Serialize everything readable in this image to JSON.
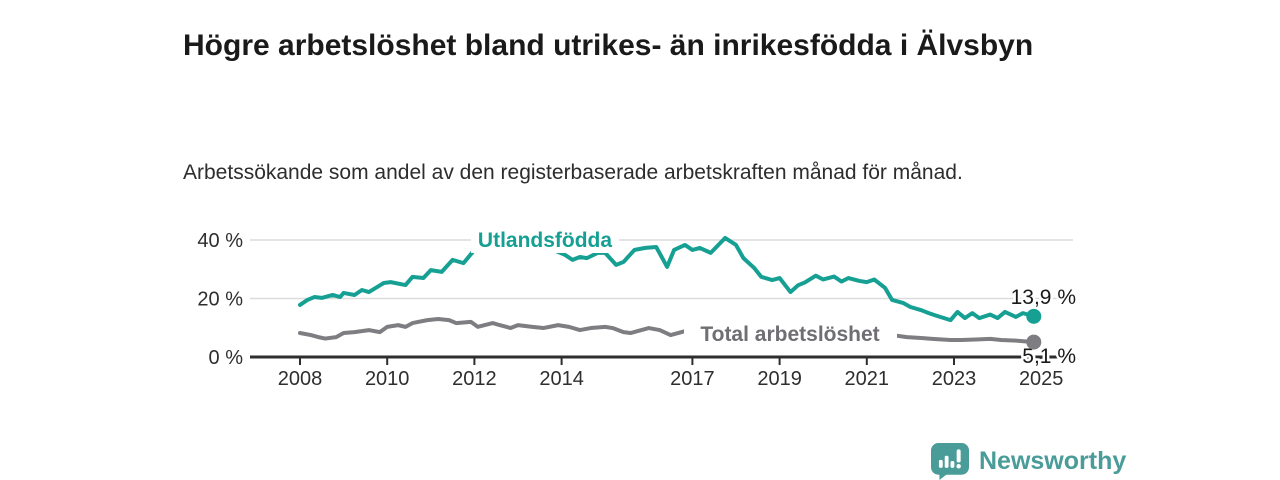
{
  "title": "Högre arbetslöshet bland utrikes- än inrikesfödda i Älvsbyn",
  "subtitle": "Arbetssökande som andel av den registerbaserade arbetskraften månad för månad.",
  "footer": {
    "brand": "Newsworthy",
    "logo_icon": "bar-chart-speech-bubble-icon"
  },
  "colors": {
    "accent_teal": "#16a093",
    "line_gray": "#7e7e82",
    "series_label_gray": "#6e6e73",
    "grid": "#dcdcdc",
    "axis": "#2e2e2e",
    "text": "#1a1a1a",
    "brand_teal": "#4a9c99"
  },
  "chart_data": {
    "type": "line",
    "title": "Högre arbetslöshet bland utrikes- än inrikesfödda i Älvsbyn",
    "subtitle": "Arbetssökande som andel av den registerbaserade arbetskraften månad för månad.",
    "unit": "%",
    "grid": true,
    "legend_position": "inline-labels",
    "xlim": [
      2006.9,
      2025.7
    ],
    "ylim": [
      0,
      44
    ],
    "x_ticks": [
      2008,
      2010,
      2012,
      2014,
      2017,
      2019,
      2021,
      2023,
      2025
    ],
    "y_ticks": [
      {
        "value": 0,
        "label": "0 %"
      },
      {
        "value": 20,
        "label": "20 %"
      },
      {
        "value": 40,
        "label": "40 %"
      }
    ],
    "series": [
      {
        "name": "Utlandsfödda",
        "color": "#16a093",
        "end_value": 13.9,
        "end_label": "13,9 %",
        "points": [
          [
            2008.0,
            17.8
          ],
          [
            2008.17,
            19.5
          ],
          [
            2008.33,
            20.5
          ],
          [
            2008.5,
            20.2
          ],
          [
            2008.75,
            21.2
          ],
          [
            2008.92,
            20.5
          ],
          [
            2009.0,
            21.9
          ],
          [
            2009.25,
            21.2
          ],
          [
            2009.42,
            22.9
          ],
          [
            2009.58,
            22.2
          ],
          [
            2009.92,
            25.3
          ],
          [
            2010.08,
            25.6
          ],
          [
            2010.42,
            24.6
          ],
          [
            2010.58,
            27.4
          ],
          [
            2010.83,
            27.0
          ],
          [
            2011.0,
            29.7
          ],
          [
            2011.25,
            29.1
          ],
          [
            2011.5,
            33.2
          ],
          [
            2011.75,
            32.1
          ],
          [
            2012.0,
            36.6
          ],
          [
            2012.17,
            38.3
          ],
          [
            2012.42,
            37.3
          ],
          [
            2012.58,
            39.0
          ],
          [
            2012.83,
            37.6
          ],
          [
            2013.08,
            38.3
          ],
          [
            2013.42,
            39.5
          ],
          [
            2013.58,
            38.0
          ],
          [
            2013.83,
            36.5
          ],
          [
            2014.08,
            34.9
          ],
          [
            2014.25,
            33.2
          ],
          [
            2014.42,
            34.2
          ],
          [
            2014.58,
            33.8
          ],
          [
            2014.83,
            35.6
          ],
          [
            2015.0,
            35.6
          ],
          [
            2015.25,
            31.5
          ],
          [
            2015.42,
            32.5
          ],
          [
            2015.67,
            36.6
          ],
          [
            2015.92,
            37.3
          ],
          [
            2016.17,
            37.6
          ],
          [
            2016.42,
            30.8
          ],
          [
            2016.58,
            36.6
          ],
          [
            2016.83,
            38.3
          ],
          [
            2017.0,
            36.6
          ],
          [
            2017.17,
            37.3
          ],
          [
            2017.42,
            35.6
          ],
          [
            2017.75,
            40.7
          ],
          [
            2018.0,
            38.3
          ],
          [
            2018.17,
            33.8
          ],
          [
            2018.42,
            30.4
          ],
          [
            2018.58,
            27.4
          ],
          [
            2018.83,
            26.3
          ],
          [
            2019.0,
            27.0
          ],
          [
            2019.25,
            22.2
          ],
          [
            2019.42,
            24.5
          ],
          [
            2019.58,
            25.5
          ],
          [
            2019.83,
            27.8
          ],
          [
            2020.0,
            26.5
          ],
          [
            2020.25,
            27.5
          ],
          [
            2020.42,
            25.8
          ],
          [
            2020.58,
            27.0
          ],
          [
            2020.83,
            26.0
          ],
          [
            2021.0,
            25.6
          ],
          [
            2021.17,
            26.5
          ],
          [
            2021.42,
            23.6
          ],
          [
            2021.58,
            19.5
          ],
          [
            2021.83,
            18.5
          ],
          [
            2022.0,
            17.1
          ],
          [
            2022.25,
            16.0
          ],
          [
            2022.42,
            15.0
          ],
          [
            2022.58,
            14.2
          ],
          [
            2022.92,
            12.6
          ],
          [
            2023.08,
            15.4
          ],
          [
            2023.25,
            13.3
          ],
          [
            2023.42,
            15.0
          ],
          [
            2023.58,
            13.3
          ],
          [
            2023.83,
            14.5
          ],
          [
            2024.0,
            13.3
          ],
          [
            2024.17,
            15.4
          ],
          [
            2024.42,
            13.7
          ],
          [
            2024.58,
            15.0
          ],
          [
            2024.83,
            13.9
          ]
        ]
      },
      {
        "name": "Total arbetslöshet",
        "color": "#7e7e82",
        "end_value": 5.1,
        "end_label": "5,1 %",
        "points": [
          [
            2008.0,
            8.2
          ],
          [
            2008.25,
            7.5
          ],
          [
            2008.42,
            6.8
          ],
          [
            2008.58,
            6.3
          ],
          [
            2008.83,
            6.8
          ],
          [
            2009.0,
            8.2
          ],
          [
            2009.25,
            8.5
          ],
          [
            2009.58,
            9.2
          ],
          [
            2009.83,
            8.5
          ],
          [
            2010.0,
            10.3
          ],
          [
            2010.25,
            10.9
          ],
          [
            2010.42,
            10.3
          ],
          [
            2010.58,
            11.6
          ],
          [
            2010.92,
            12.6
          ],
          [
            2011.17,
            13.0
          ],
          [
            2011.42,
            12.6
          ],
          [
            2011.58,
            11.6
          ],
          [
            2011.92,
            12.0
          ],
          [
            2012.08,
            10.3
          ],
          [
            2012.42,
            11.6
          ],
          [
            2012.58,
            10.9
          ],
          [
            2012.83,
            9.9
          ],
          [
            2013.0,
            10.9
          ],
          [
            2013.33,
            10.3
          ],
          [
            2013.58,
            9.9
          ],
          [
            2013.92,
            10.9
          ],
          [
            2014.17,
            10.3
          ],
          [
            2014.42,
            9.2
          ],
          [
            2014.67,
            9.9
          ],
          [
            2015.0,
            10.3
          ],
          [
            2015.17,
            9.9
          ],
          [
            2015.42,
            8.5
          ],
          [
            2015.58,
            8.2
          ],
          [
            2015.83,
            9.2
          ],
          [
            2016.0,
            9.9
          ],
          [
            2016.25,
            9.2
          ],
          [
            2016.5,
            7.5
          ],
          [
            2016.67,
            8.2
          ],
          [
            2016.92,
            9.2
          ],
          [
            2017.17,
            8.8
          ],
          [
            2017.5,
            8.5
          ],
          [
            2017.83,
            8.2
          ],
          [
            2018.17,
            8.0
          ],
          [
            2018.5,
            7.8
          ],
          [
            2018.83,
            7.6
          ],
          [
            2019.17,
            7.7
          ],
          [
            2019.5,
            7.4
          ],
          [
            2019.83,
            7.3
          ],
          [
            2020.17,
            7.6
          ],
          [
            2020.5,
            7.4
          ],
          [
            2020.83,
            7.2
          ],
          [
            2021.17,
            7.3
          ],
          [
            2021.42,
            7.4
          ],
          [
            2021.58,
            7.5
          ],
          [
            2021.92,
            6.8
          ],
          [
            2022.25,
            6.5
          ],
          [
            2022.5,
            6.2
          ],
          [
            2022.92,
            5.8
          ],
          [
            2023.17,
            5.8
          ],
          [
            2023.5,
            6.0
          ],
          [
            2023.83,
            6.2
          ],
          [
            2024.08,
            5.8
          ],
          [
            2024.42,
            5.6
          ],
          [
            2024.83,
            5.1
          ]
        ]
      }
    ]
  }
}
